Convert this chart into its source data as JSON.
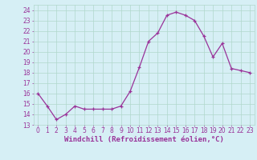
{
  "x": [
    0,
    1,
    2,
    3,
    4,
    5,
    6,
    7,
    8,
    9,
    10,
    11,
    12,
    13,
    14,
    15,
    16,
    17,
    18,
    19,
    20,
    21,
    22,
    23
  ],
  "y": [
    16.0,
    14.8,
    13.5,
    14.0,
    14.8,
    14.5,
    14.5,
    14.5,
    14.5,
    14.8,
    16.2,
    18.5,
    21.0,
    21.8,
    23.5,
    23.8,
    23.5,
    23.0,
    21.5,
    19.5,
    20.8,
    18.4,
    18.2,
    18.0
  ],
  "line_color": "#993399",
  "marker": "+",
  "marker_color": "#993399",
  "bg_color": "#d6eff5",
  "grid_color": "#b0d8cc",
  "xlabel": "Windchill (Refroidissement éolien,°C)",
  "xlabel_color": "#993399",
  "xtick_color": "#993399",
  "ytick_color": "#993399",
  "ylim": [
    13,
    24.5
  ],
  "xlim": [
    -0.5,
    23.5
  ],
  "yticks": [
    13,
    14,
    15,
    16,
    17,
    18,
    19,
    20,
    21,
    22,
    23,
    24
  ],
  "xticks": [
    0,
    1,
    2,
    3,
    4,
    5,
    6,
    7,
    8,
    9,
    10,
    11,
    12,
    13,
    14,
    15,
    16,
    17,
    18,
    19,
    20,
    21,
    22,
    23
  ],
  "tick_fontsize": 5.5,
  "label_fontsize": 6.5
}
